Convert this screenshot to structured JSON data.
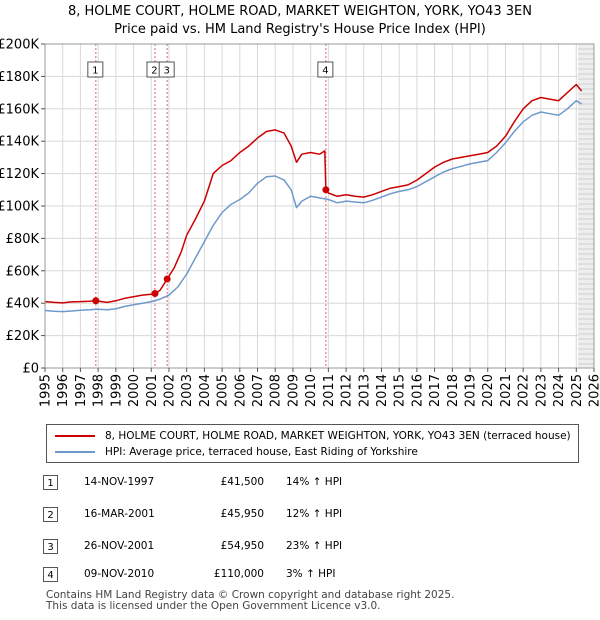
{
  "titles": {
    "line1": "8, HOLME COURT, HOLME ROAD, MARKET WEIGHTON, YORK, YO43 3EN",
    "line2": "Price paid vs. HM Land Registry's House Price Index (HPI)"
  },
  "chart_data": {
    "type": "line",
    "title": "Price paid vs. HM Land Registry's House Price Index (HPI)",
    "xlabel": "",
    "ylabel": "",
    "xlim": [
      1995,
      2026
    ],
    "ylim": [
      0,
      200000
    ],
    "y_ticks": [
      0,
      20000,
      40000,
      60000,
      80000,
      100000,
      120000,
      140000,
      160000,
      180000,
      200000
    ],
    "y_tick_labels": [
      "£0",
      "£20K",
      "£40K",
      "£60K",
      "£80K",
      "£100K",
      "£120K",
      "£140K",
      "£160K",
      "£180K",
      "£200K"
    ],
    "x_ticks": [
      1995,
      1996,
      1997,
      1998,
      1999,
      2000,
      2001,
      2002,
      2003,
      2004,
      2005,
      2006,
      2007,
      2008,
      2009,
      2010,
      2011,
      2012,
      2013,
      2014,
      2015,
      2016,
      2017,
      2018,
      2019,
      2020,
      2021,
      2022,
      2023,
      2024,
      2025,
      2026
    ],
    "x_tick_labels": [
      "1995",
      "1996",
      "1997",
      "1998",
      "1999",
      "2000",
      "2001",
      "2002",
      "2003",
      "2004",
      "2005",
      "2006",
      "2007",
      "2008",
      "2009",
      "2010",
      "2011",
      "2012",
      "2013",
      "2014",
      "2015",
      "2016",
      "2017",
      "2018",
      "2019",
      "2020",
      "2021",
      "2022",
      "2023",
      "2024",
      "2025",
      "2026"
    ],
    "grid": true,
    "future_region_start": 2025.1,
    "series": [
      {
        "name": "8, HOLME COURT, HOLME ROAD, MARKET WEIGHTON, YORK, YO43 3EN (terraced house)",
        "color": "#cc0000",
        "x": [
          1995.0,
          1995.5,
          1996.0,
          1996.5,
          1997.0,
          1997.5,
          1997.87,
          1998.5,
          1999.0,
          1999.5,
          2000.0,
          2000.5,
          2001.0,
          2001.21,
          2001.5,
          2001.9,
          2002.3,
          2002.7,
          2003.0,
          2003.5,
          2004.0,
          2004.5,
          2005.0,
          2005.5,
          2006.0,
          2006.5,
          2007.0,
          2007.5,
          2008.0,
          2008.5,
          2008.9,
          2009.2,
          2009.5,
          2010.0,
          2010.5,
          2010.8,
          2010.86,
          2011.0,
          2011.5,
          2012.0,
          2012.5,
          2013.0,
          2013.5,
          2014.0,
          2014.5,
          2015.0,
          2015.5,
          2016.0,
          2016.5,
          2017.0,
          2017.5,
          2018.0,
          2018.5,
          2019.0,
          2019.5,
          2020.0,
          2020.5,
          2021.0,
          2021.5,
          2022.0,
          2022.5,
          2023.0,
          2023.5,
          2024.0,
          2024.5,
          2025.0,
          2025.3
        ],
        "y": [
          41000,
          40500,
          40200,
          40800,
          41000,
          41200,
          41500,
          40500,
          41500,
          43000,
          44000,
          45000,
          45500,
          45950,
          48000,
          54950,
          62000,
          72000,
          82000,
          92000,
          103000,
          120000,
          125000,
          128000,
          133000,
          137000,
          142000,
          146000,
          147000,
          145000,
          137000,
          127000,
          132000,
          133000,
          132000,
          134000,
          110000,
          108000,
          106000,
          107000,
          106000,
          105500,
          107000,
          109000,
          111000,
          112000,
          113000,
          116000,
          120000,
          124000,
          127000,
          129000,
          130000,
          131000,
          132000,
          133000,
          137000,
          143000,
          152000,
          160000,
          165000,
          167000,
          166000,
          165000,
          170000,
          175000,
          171000
        ]
      },
      {
        "name": "HPI: Average price, terraced house, East Riding of Yorkshire",
        "color": "#6e99cc",
        "x": [
          1995.0,
          1995.5,
          1996.0,
          1996.5,
          1997.0,
          1997.5,
          1998.0,
          1998.5,
          1999.0,
          1999.5,
          2000.0,
          2000.5,
          2001.0,
          2001.5,
          2002.0,
          2002.5,
          2003.0,
          2003.5,
          2004.0,
          2004.5,
          2005.0,
          2005.5,
          2006.0,
          2006.5,
          2007.0,
          2007.5,
          2008.0,
          2008.5,
          2008.9,
          2009.2,
          2009.5,
          2010.0,
          2010.5,
          2011.0,
          2011.5,
          2012.0,
          2012.5,
          2013.0,
          2013.5,
          2014.0,
          2014.5,
          2015.0,
          2015.5,
          2016.0,
          2016.5,
          2017.0,
          2017.5,
          2018.0,
          2018.5,
          2019.0,
          2019.5,
          2020.0,
          2020.5,
          2021.0,
          2021.5,
          2022.0,
          2022.5,
          2023.0,
          2023.5,
          2024.0,
          2024.5,
          2025.0,
          2025.3
        ],
        "y": [
          35500,
          35000,
          34800,
          35200,
          35600,
          36000,
          36300,
          36000,
          36500,
          38000,
          39000,
          40000,
          41000,
          42500,
          45000,
          50000,
          58000,
          68000,
          78000,
          88000,
          96000,
          101000,
          104000,
          108000,
          114000,
          118000,
          118500,
          116000,
          110000,
          99000,
          103000,
          106000,
          105000,
          104000,
          102000,
          103000,
          102500,
          102000,
          103500,
          105500,
          107500,
          109000,
          110000,
          112000,
          115000,
          118000,
          121000,
          123000,
          124500,
          126000,
          127000,
          128000,
          133000,
          139000,
          146000,
          152000,
          156000,
          158000,
          157000,
          156000,
          160000,
          165000,
          163000
        ]
      }
    ],
    "sale_markers": [
      {
        "label": "1",
        "x": 1997.87,
        "y": 41500
      },
      {
        "label": "2",
        "x": 2001.21,
        "y": 45950
      },
      {
        "label": "3",
        "x": 2001.9,
        "y": 54950
      },
      {
        "label": "4",
        "x": 2010.86,
        "y": 110000
      }
    ]
  },
  "legend": {
    "property_label": "8, HOLME COURT, HOLME ROAD, MARKET WEIGHTON, YORK, YO43 3EN (terraced house)",
    "hpi_label": "HPI: Average price, terraced house, East Riding of Yorkshire",
    "property_color": "#cc0000",
    "hpi_color": "#6e99cc"
  },
  "sales": [
    {
      "num": "1",
      "date": "14-NOV-1997",
      "price": "£41,500",
      "hpi": "14% ↑ HPI"
    },
    {
      "num": "2",
      "date": "16-MAR-2001",
      "price": "£45,950",
      "hpi": "12% ↑ HPI"
    },
    {
      "num": "3",
      "date": "26-NOV-2001",
      "price": "£54,950",
      "hpi": "23% ↑ HPI"
    },
    {
      "num": "4",
      "date": "09-NOV-2010",
      "price": "£110,000",
      "hpi": "3% ↑ HPI"
    }
  ],
  "footer": {
    "line1": "Contains HM Land Registry data © Crown copyright and database right 2025.",
    "line2": "This data is licensed under the Open Government Licence v3.0."
  }
}
